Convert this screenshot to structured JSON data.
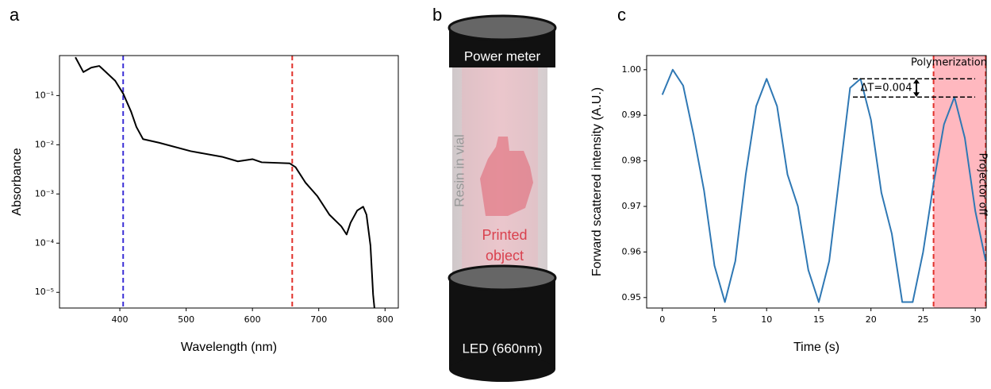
{
  "chart_data": [
    {
      "panel": "a",
      "type": "line",
      "xlabel": "Wavelength (nm)",
      "ylabel": "Absorbance",
      "log_y": true,
      "x": [
        333,
        345,
        357,
        369,
        393,
        405,
        417,
        425,
        435,
        459,
        507,
        554,
        578,
        600,
        614,
        656,
        665,
        680,
        698,
        716,
        734,
        742,
        748,
        758,
        767,
        772,
        778,
        782,
        784
      ],
      "series": [
        {
          "color": "#000000",
          "values": [
            0.6,
            0.3,
            0.37,
            0.4,
            0.2,
            0.11,
            0.047,
            0.023,
            0.013,
            0.011,
            0.0074,
            0.0057,
            0.0046,
            0.0051,
            0.0044,
            0.0042,
            0.0035,
            0.0017,
            0.0009,
            0.00038,
            0.00022,
            0.00015,
            0.00026,
            0.00046,
            0.00055,
            0.00038,
            9e-05,
            9e-06,
            4.8e-06
          ]
        }
      ],
      "xlim": [
        309,
        820
      ],
      "ylim": [
        4.8e-06,
        0.65
      ],
      "xticks": [
        400,
        500,
        600,
        700,
        800
      ],
      "yticks": [
        {
          "value": 1e-05,
          "label": "10⁻⁵"
        },
        {
          "value": 0.0001,
          "label": "10⁻⁴"
        },
        {
          "value": 0.001,
          "label": "10⁻³"
        },
        {
          "value": 0.01,
          "label": "10⁻²"
        },
        {
          "value": 0.1,
          "label": "10⁻¹"
        }
      ],
      "vlines": [
        {
          "x": 405,
          "color": "#3b2fd6"
        },
        {
          "x": 660,
          "color": "#e0302a"
        }
      ]
    },
    {
      "panel": "c",
      "type": "line",
      "xlabel": "Time (s)",
      "ylabel": "Forward scattered intensity (A.U.)",
      "x": [
        0,
        1,
        2,
        3,
        4,
        5,
        6,
        7,
        8,
        9,
        10,
        11,
        12,
        13,
        14,
        15,
        16,
        17,
        18,
        19,
        20,
        21,
        22,
        23,
        24,
        25,
        26,
        27,
        28,
        29,
        30,
        31
      ],
      "series": [
        {
          "color": "#2f78b4",
          "values": [
            0.9945,
            1.0,
            0.9965,
            0.9857,
            0.9735,
            0.957,
            0.949,
            0.958,
            0.977,
            0.992,
            0.998,
            0.992,
            0.977,
            0.97,
            0.956,
            0.949,
            0.958,
            0.977,
            0.996,
            0.998,
            0.989,
            0.973,
            0.964,
            0.949,
            0.949,
            0.96,
            0.975,
            0.988,
            0.994,
            0.985,
            0.969,
            0.958
          ]
        }
      ],
      "xlim": [
        -1.5,
        31.05
      ],
      "ylim": [
        0.9477,
        1.0031
      ],
      "xticks": [
        0,
        5,
        10,
        15,
        20,
        25,
        30
      ],
      "yticks": [
        0.95,
        0.96,
        0.97,
        0.98,
        0.99,
        {
          "value": 1,
          "label": "1.00"
        }
      ],
      "span": [
        26,
        31
      ],
      "span_color": "#ffb8bf",
      "vlines": [
        {
          "x": 26,
          "color": "#e0302a"
        },
        {
          "x": 31,
          "color": "#e0302a"
        }
      ],
      "delta_levels": [
        0.998,
        0.994
      ],
      "annotations": [
        "Polymerization",
        "ΔT=0.004",
        "Projector off"
      ]
    }
  ],
  "diagram": {
    "panel": "b",
    "top_label": "Power meter",
    "vial_label": "Resin in vial",
    "object_label": [
      "Printed",
      "object"
    ],
    "bottom_label": "LED (660nm)"
  }
}
